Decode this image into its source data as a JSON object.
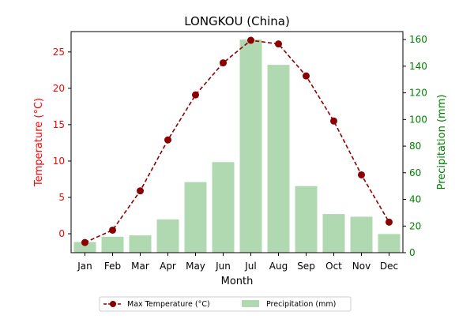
{
  "chart_data": {
    "type": "bar+line",
    "title": "LONGKOU (China)",
    "xlabel": "Month",
    "ylabel_left": "Temperature (°C)",
    "ylabel_right": "Precipitation (mm)",
    "categories": [
      "Jan",
      "Feb",
      "Mar",
      "Apr",
      "May",
      "Jun",
      "Jul",
      "Aug",
      "Sep",
      "Oct",
      "Nov",
      "Dec"
    ],
    "ylim_left": [
      -2.6,
      27.8
    ],
    "yticks_left": [
      0,
      5,
      10,
      15,
      20,
      25
    ],
    "ylim_right": [
      0,
      166
    ],
    "yticks_right": [
      0,
      20,
      40,
      60,
      80,
      100,
      120,
      140,
      160
    ],
    "series": [
      {
        "name": "Max Temperature (°C)",
        "kind": "line",
        "axis": "left",
        "color": "#8b0000",
        "values": [
          -1.2,
          0.5,
          5.9,
          12.9,
          19.1,
          23.5,
          26.6,
          26.1,
          21.7,
          15.5,
          8.1,
          1.6
        ]
      },
      {
        "name": "Precipitation (mm)",
        "kind": "bar",
        "axis": "right",
        "color": "#b0d9b1",
        "values": [
          8,
          12,
          13,
          25,
          53,
          68,
          160,
          141,
          50,
          29,
          27,
          14
        ]
      }
    ],
    "legend_position": "bottom-center",
    "grid": false
  },
  "colors": {
    "left_axis": "#ff0000",
    "right_axis": "#008000"
  }
}
